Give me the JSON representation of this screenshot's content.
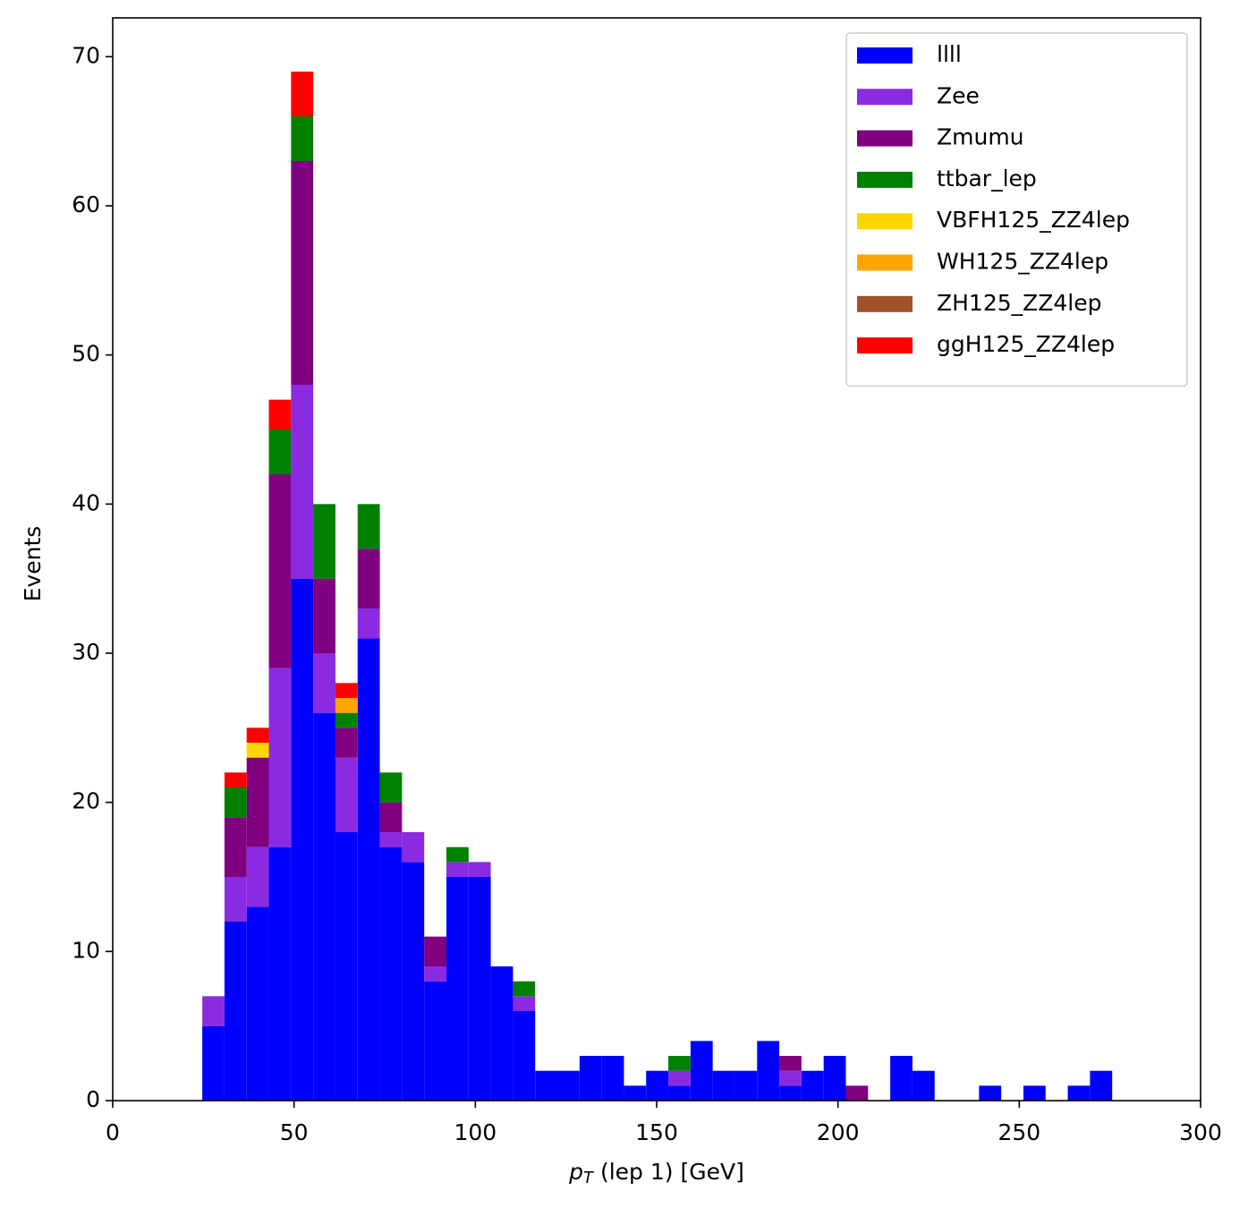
{
  "chart_data": {
    "type": "stacked_histogram",
    "xlabel": "pT (lep 1) [GeV]",
    "ylabel": "Events",
    "bins": [
      24.7,
      30.82,
      36.94,
      43.06,
      49.18,
      55.3,
      61.42,
      67.54,
      73.66,
      79.78,
      85.9,
      92.02,
      98.14,
      104.26,
      110.38,
      116.5,
      122.62,
      128.74,
      134.86,
      140.98,
      147.1,
      153.22,
      159.34,
      165.46,
      171.58,
      177.7,
      183.82,
      189.94,
      196.06,
      202.18,
      208.3,
      214.42,
      220.54,
      226.66,
      232.78,
      238.9,
      245.02,
      251.14,
      257.26,
      263.38,
      269.5,
      275.62
    ],
    "series": [
      {
        "name": "llll",
        "color": "#0000ff",
        "values": [
          5,
          12,
          13,
          17,
          35,
          26,
          18,
          31,
          17,
          16,
          8,
          15,
          15,
          9,
          6,
          2,
          2,
          3,
          3,
          1,
          2,
          1,
          4,
          2,
          2,
          4,
          1,
          2,
          3,
          0,
          0,
          3,
          2,
          0,
          0,
          1,
          0,
          1,
          0,
          1,
          2
        ]
      },
      {
        "name": "Zee",
        "color": "#8a2be2",
        "values": [
          2,
          3,
          4,
          12,
          13,
          4,
          5,
          2,
          1,
          2,
          1,
          1,
          1,
          0,
          1,
          0,
          0,
          0,
          0,
          0,
          0,
          1,
          0,
          0,
          0,
          0,
          1,
          0,
          0,
          0,
          0,
          0,
          0,
          0,
          0,
          0,
          0,
          0,
          0,
          0,
          0
        ]
      },
      {
        "name": "Zmumu",
        "color": "#800080",
        "values": [
          0,
          4,
          6,
          13,
          15,
          5,
          2,
          4,
          2,
          0,
          2,
          0,
          0,
          0,
          0,
          0,
          0,
          0,
          0,
          0,
          0,
          0,
          0,
          0,
          0,
          0,
          1,
          0,
          0,
          1,
          0,
          0,
          0,
          0,
          0,
          0,
          0,
          0,
          0,
          0,
          0
        ]
      },
      {
        "name": "ttbar_lep",
        "color": "#008000",
        "values": [
          0,
          2,
          0,
          3,
          3,
          5,
          1,
          3,
          2,
          0,
          0,
          1,
          0,
          0,
          1,
          0,
          0,
          0,
          0,
          0,
          0,
          1,
          0,
          0,
          0,
          0,
          0,
          0,
          0,
          0,
          0,
          0,
          0,
          0,
          0,
          0,
          0,
          0,
          0,
          0,
          0
        ]
      },
      {
        "name": "VBFH125_ZZ4lep",
        "color": "#ffd700",
        "values": [
          0,
          0,
          1,
          0,
          0,
          0,
          0,
          0,
          0,
          0,
          0,
          0,
          0,
          0,
          0,
          0,
          0,
          0,
          0,
          0,
          0,
          0,
          0,
          0,
          0,
          0,
          0,
          0,
          0,
          0,
          0,
          0,
          0,
          0,
          0,
          0,
          0,
          0,
          0,
          0,
          0
        ]
      },
      {
        "name": "WH125_ZZ4lep",
        "color": "#ffa500",
        "values": [
          0,
          0,
          0,
          0,
          0,
          0,
          1,
          0,
          0,
          0,
          0,
          0,
          0,
          0,
          0,
          0,
          0,
          0,
          0,
          0,
          0,
          0,
          0,
          0,
          0,
          0,
          0,
          0,
          0,
          0,
          0,
          0,
          0,
          0,
          0,
          0,
          0,
          0,
          0,
          0,
          0
        ]
      },
      {
        "name": "ZH125_ZZ4lep",
        "color": "#a0522d",
        "values": [
          0,
          0,
          0,
          0,
          0,
          0,
          0,
          0,
          0,
          0,
          0,
          0,
          0,
          0,
          0,
          0,
          0,
          0,
          0,
          0,
          0,
          0,
          0,
          0,
          0,
          0,
          0,
          0,
          0,
          0,
          0,
          0,
          0,
          0,
          0,
          0,
          0,
          0,
          0,
          0,
          0
        ]
      },
      {
        "name": "ggH125_ZZ4lep",
        "color": "#ff0000",
        "values": [
          0,
          1,
          1,
          2,
          3,
          0,
          1,
          0,
          0,
          0,
          0,
          0,
          0,
          0,
          0,
          0,
          0,
          0,
          0,
          0,
          0,
          0,
          0,
          0,
          0,
          0,
          0,
          0,
          0,
          0,
          0,
          0,
          0,
          0,
          0,
          0,
          0,
          0,
          0,
          0,
          0
        ]
      }
    ],
    "xlim": [
      0,
      300
    ],
    "xticks": [
      0,
      50,
      100,
      150,
      200,
      250,
      300
    ],
    "ylim": [
      0,
      72.6
    ],
    "yticks": [
      0,
      10,
      20,
      30,
      40,
      50,
      60,
      70
    ],
    "legend": "upper right"
  }
}
